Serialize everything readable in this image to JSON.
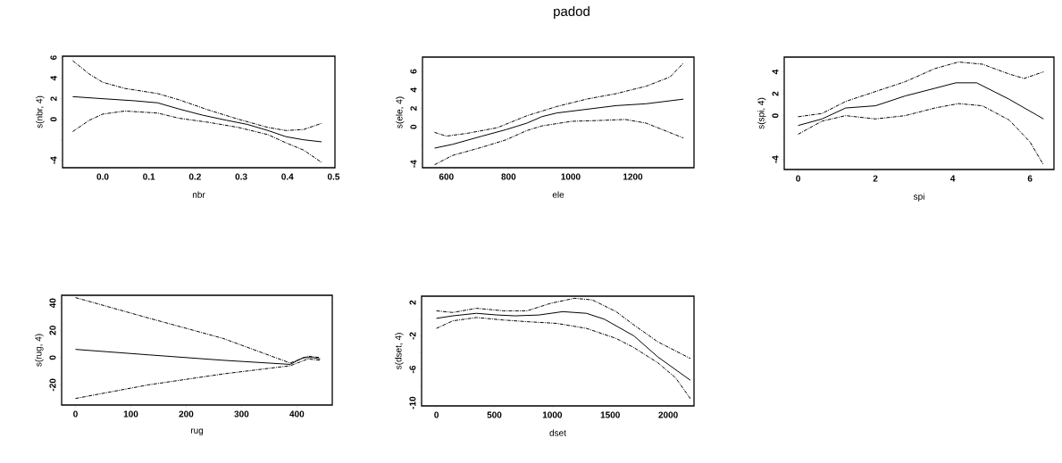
{
  "chart_data": [
    {
      "type": "line",
      "xlabel": "nbr",
      "ylabel": "s(nbr, 4)",
      "xlim": [
        -0.087,
        0.503
      ],
      "ylim": [
        -4.72,
        6.14
      ],
      "xticks": [
        {
          "value": 0.0,
          "label": "0.0"
        },
        0.1,
        0.2,
        0.3,
        0.4,
        0.5
      ],
      "yticks": [
        -4,
        {
          "value": -2,
          "label": null
        },
        0,
        2,
        4,
        6
      ],
      "series": [
        {
          "color": "#000000",
          "line_style": "solid",
          "x": [
            -0.065,
            0.0,
            0.068,
            0.119,
            0.165,
            0.216,
            0.268,
            0.313,
            0.358,
            0.397,
            0.435,
            0.474
          ],
          "values": [
            2.2,
            2.0,
            1.8,
            1.6,
            1.0,
            0.4,
            -0.1,
            -0.5,
            -1.1,
            -1.7,
            -2.0,
            -2.2
          ]
        },
        {
          "color": "#000000",
          "line_style": "dashed",
          "x": [
            -0.065,
            -0.029,
            0.0,
            0.048,
            0.119,
            0.165,
            0.229,
            0.294,
            0.358,
            0.397,
            0.435,
            0.474
          ],
          "values": [
            5.7,
            4.4,
            3.6,
            3.0,
            2.5,
            1.9,
            0.9,
            0.0,
            -0.8,
            -1.1,
            -1.0,
            -0.4
          ]
        },
        {
          "color": "#000000",
          "line_style": "dashed",
          "x": [
            -0.065,
            -0.029,
            0.0,
            0.048,
            0.119,
            0.165,
            0.229,
            0.294,
            0.358,
            0.397,
            0.435,
            0.474
          ],
          "values": [
            -1.2,
            -0.1,
            0.5,
            0.8,
            0.6,
            0.1,
            -0.3,
            -0.8,
            -1.5,
            -2.3,
            -3.0,
            -4.2
          ]
        }
      ]
    },
    {
      "type": "line",
      "title": "padod",
      "xlabel": "ele",
      "ylabel": "s(ele, 4)",
      "xlim": [
        523,
        1397
      ],
      "ylim": [
        -4.42,
        7.55
      ],
      "xticks": [
        600,
        800,
        1000,
        1200
      ],
      "yticks": [
        -4,
        {
          "value": -2,
          "label": null
        },
        0,
        2,
        4,
        6
      ],
      "series": [
        {
          "color": "#000000",
          "line_style": "solid",
          "x": [
            562,
            619,
            715,
            792,
            859,
            907,
            955,
            1051,
            1147,
            1243,
            1363
          ],
          "values": [
            -2.3,
            -1.9,
            -1.0,
            -0.3,
            0.4,
            1.1,
            1.5,
            1.9,
            2.3,
            2.5,
            3.0
          ]
        },
        {
          "color": "#000000",
          "line_style": "dashed",
          "x": [
            562,
            600,
            667,
            763,
            859,
            955,
            1051,
            1147,
            1243,
            1320,
            1363
          ],
          "values": [
            -0.6,
            -1.0,
            -0.7,
            -0.1,
            1.2,
            2.2,
            3.0,
            3.6,
            4.4,
            5.4,
            6.9
          ]
        },
        {
          "color": "#000000",
          "line_style": "dashed",
          "x": [
            562,
            619,
            715,
            792,
            859,
            907,
            1003,
            1099,
            1176,
            1243,
            1363
          ],
          "values": [
            -4.1,
            -3.1,
            -2.2,
            -1.4,
            -0.4,
            0.1,
            0.6,
            0.7,
            0.8,
            0.4,
            -1.2
          ]
        }
      ]
    },
    {
      "type": "line",
      "xlabel": "spi",
      "ylabel": "s(spi, 4)",
      "xlim": [
        -0.36,
        6.62
      ],
      "ylim": [
        -4.92,
        5.35
      ],
      "xticks": [
        0,
        2,
        4,
        6
      ],
      "yticks": [
        -4,
        {
          "value": -2,
          "label": null
        },
        0,
        2,
        4
      ],
      "series": [
        {
          "color": "#000000",
          "line_style": "solid",
          "x": [
            0,
            0.62,
            1.23,
            2,
            2.77,
            3.54,
            4.08,
            4.62,
            5.46,
            6.35
          ],
          "values": [
            -0.9,
            -0.3,
            0.7,
            0.9,
            1.8,
            2.5,
            3.0,
            3.0,
            1.5,
            -0.3
          ]
        },
        {
          "color": "#000000",
          "line_style": "dashed",
          "x": [
            0,
            0.62,
            1.23,
            2,
            2.77,
            3.54,
            4.15,
            4.77,
            5.46,
            5.85,
            6.35
          ],
          "values": [
            -0.1,
            0.2,
            1.3,
            2.2,
            3.1,
            4.3,
            4.9,
            4.7,
            3.8,
            3.4,
            4.0
          ]
        },
        {
          "color": "#000000",
          "line_style": "dashed",
          "x": [
            0,
            0.62,
            1.23,
            2,
            2.77,
            3.54,
            4.15,
            4.77,
            5.46,
            6,
            6.35
          ],
          "values": [
            -1.7,
            -0.5,
            0.0,
            -0.3,
            0.0,
            0.7,
            1.1,
            0.9,
            -0.4,
            -2.4,
            -4.5
          ]
        }
      ]
    },
    {
      "type": "line",
      "xlabel": "rug",
      "ylabel": "s(rug, 4)",
      "xlim": [
        -25,
        464
      ],
      "ylim": [
        -34.8,
        45.7
      ],
      "xticks": [
        0,
        100,
        200,
        300,
        400
      ],
      "yticks": [
        -20,
        0,
        20,
        40
      ],
      "series": [
        {
          "color": "#000000",
          "line_style": "solid",
          "x": [
            0,
            132,
            267,
            388,
            402,
            412,
            429,
            442
          ],
          "values": [
            6,
            2,
            -2,
            -5,
            -2,
            0,
            0,
            -1
          ]
        },
        {
          "color": "#000000",
          "line_style": "dashed",
          "x": [
            0,
            132,
            267,
            388,
            420,
            442
          ],
          "values": [
            44,
            29,
            14,
            -4,
            1,
            0
          ]
        },
        {
          "color": "#000000",
          "line_style": "dashed",
          "x": [
            0,
            132,
            267,
            388,
            420,
            442
          ],
          "values": [
            -30,
            -20,
            -12,
            -6,
            -1,
            -2
          ]
        }
      ]
    },
    {
      "type": "line",
      "xlabel": "dset",
      "ylabel": "s(dset, 4)",
      "xlim": [
        -128,
        2223
      ],
      "ylim": [
        -10.36,
        2.75
      ],
      "xticks": [
        0,
        500,
        1000,
        1500,
        2000
      ],
      "yticks": [
        -10,
        {
          "value": -8,
          "label": null
        },
        -6,
        {
          "value": -4,
          "label": null
        },
        -2,
        {
          "value": 0,
          "label": null
        },
        2
      ],
      "series": [
        {
          "color": "#000000",
          "line_style": "solid",
          "x": [
            0,
            141,
            346,
            526,
            679,
            885,
            1090,
            1295,
            1449,
            1705,
            1910,
            2192
          ],
          "values": [
            0.1,
            0.4,
            0.7,
            0.5,
            0.4,
            0.5,
            0.9,
            0.7,
            0.0,
            -2.0,
            -4.5,
            -7.3
          ]
        },
        {
          "color": "#000000",
          "line_style": "dashed",
          "x": [
            0,
            141,
            346,
            577,
            782,
            987,
            1192,
            1346,
            1551,
            1705,
            1910,
            2192
          ],
          "values": [
            1.0,
            0.8,
            1.3,
            1.0,
            1.0,
            1.9,
            2.5,
            2.3,
            0.9,
            -0.7,
            -2.7,
            -4.7
          ]
        },
        {
          "color": "#000000",
          "line_style": "dashed",
          "x": [
            0,
            141,
            346,
            577,
            782,
            1038,
            1295,
            1551,
            1705,
            1910,
            2064,
            2192
          ],
          "values": [
            -1.1,
            -0.2,
            0.2,
            -0.1,
            -0.3,
            -0.5,
            -1.1,
            -2.3,
            -3.4,
            -5.2,
            -7.0,
            -9.5
          ]
        }
      ]
    }
  ]
}
